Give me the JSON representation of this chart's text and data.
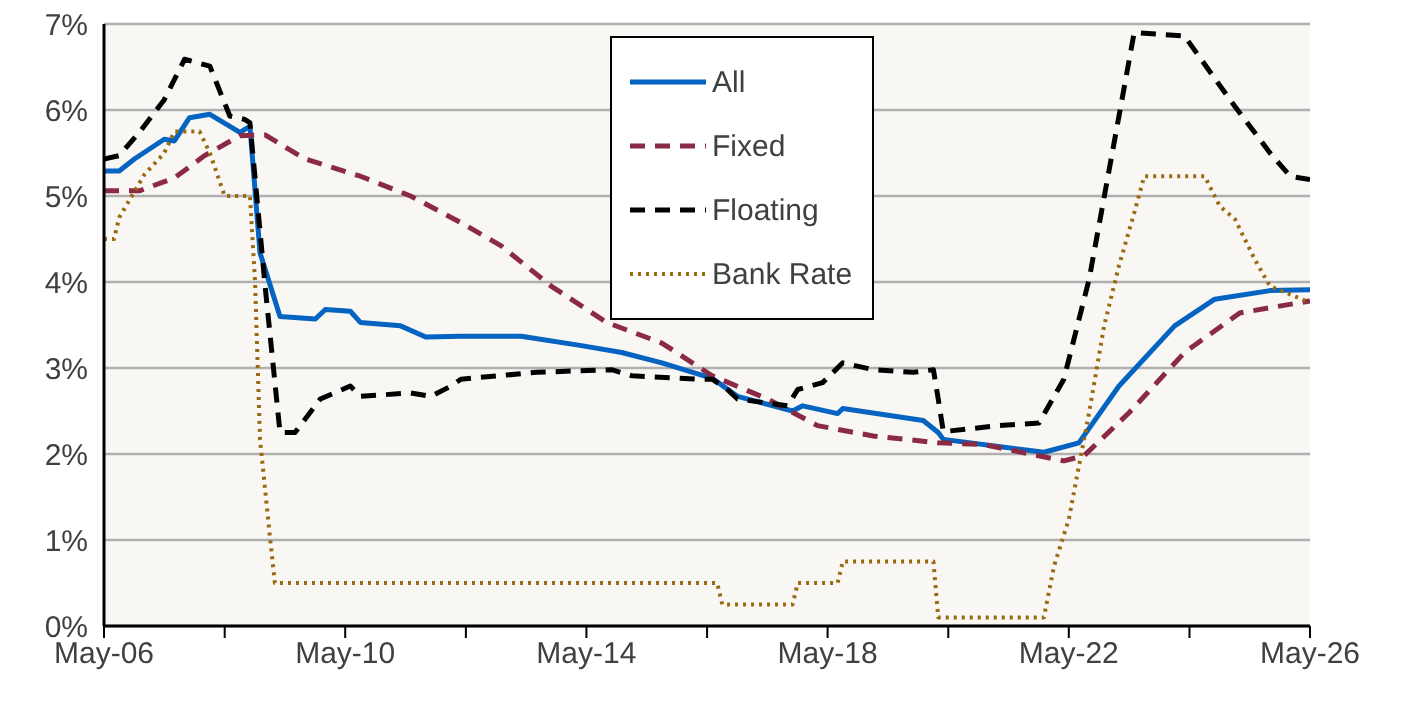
{
  "chart_data": {
    "type": "line",
    "xlim": [
      "2006-05",
      "2026-05"
    ],
    "ylim": [
      0,
      7
    ],
    "xticks": [
      {
        "value": "2006-05",
        "label": "May-06"
      },
      {
        "value": "2008-05",
        "label": null
      },
      {
        "value": "2010-05",
        "label": "May-10"
      },
      {
        "value": "2012-05",
        "label": null
      },
      {
        "value": "2014-05",
        "label": "May-14"
      },
      {
        "value": "2016-05",
        "label": null
      },
      {
        "value": "2018-05",
        "label": "May-18"
      },
      {
        "value": "2020-05",
        "label": null
      },
      {
        "value": "2022-05",
        "label": "May-22"
      },
      {
        "value": "2024-05",
        "label": null
      },
      {
        "value": "2026-05",
        "label": "May-26"
      }
    ],
    "yticks": [
      {
        "value": 0,
        "label": "0%"
      },
      {
        "value": 1,
        "label": "1%"
      },
      {
        "value": 2,
        "label": "2%"
      },
      {
        "value": 3,
        "label": "3%"
      },
      {
        "value": 4,
        "label": "4%"
      },
      {
        "value": 5,
        "label": "5%"
      },
      {
        "value": 6,
        "label": "6%"
      },
      {
        "value": 7,
        "label": "7%"
      }
    ],
    "grid": "y",
    "legend": "top",
    "series": [
      {
        "name": "All",
        "color": "#0563c1",
        "line_style": "solid",
        "x": [
          "2006-05",
          "2006-08",
          "2006-11",
          "2007-05",
          "2007-07",
          "2007-10",
          "2008-02",
          "2008-08",
          "2008-10",
          "2008-12",
          "2009-04",
          "2009-11",
          "2010-01",
          "2010-06",
          "2010-08",
          "2011-04",
          "2011-09",
          "2012-04",
          "2013-04",
          "2014-04",
          "2014-12",
          "2015-08",
          "2016-06",
          "2016-11",
          "2017-10",
          "2017-12",
          "2018-07",
          "2018-08",
          "2019-12",
          "2020-03",
          "2020-04",
          "2021-12",
          "2022-07",
          "2023-03",
          "2024-02",
          "2024-10",
          "2025-09",
          "2026-05"
        ],
        "values": [
          5.29,
          5.29,
          5.43,
          5.66,
          5.64,
          5.91,
          5.95,
          5.74,
          5.81,
          4.34,
          3.6,
          3.57,
          3.68,
          3.66,
          3.53,
          3.49,
          3.36,
          3.37,
          3.37,
          3.26,
          3.18,
          3.06,
          2.88,
          2.67,
          2.5,
          2.56,
          2.47,
          2.53,
          2.39,
          2.25,
          2.17,
          2.02,
          2.13,
          2.79,
          3.49,
          3.8,
          3.9,
          3.91
        ]
      },
      {
        "name": "Fixed",
        "color": "#8b2a44",
        "line_style": "dashed",
        "x": [
          "2006-05",
          "2006-12",
          "2007-07",
          "2008-01",
          "2008-08",
          "2009-01",
          "2009-09",
          "2010-08",
          "2011-06",
          "2012-04",
          "2012-12",
          "2013-10",
          "2014-09",
          "2015-08",
          "2016-06",
          "2017-05",
          "2018-03",
          "2019-02",
          "2020-03",
          "2020-12",
          "2022-04",
          "2022-08",
          "2023-05",
          "2024-04",
          "2025-03",
          "2026-05"
        ],
        "values": [
          5.06,
          5.06,
          5.21,
          5.47,
          5.7,
          5.71,
          5.43,
          5.23,
          5.0,
          4.69,
          4.42,
          3.95,
          3.53,
          3.29,
          2.91,
          2.64,
          2.33,
          2.21,
          2.13,
          2.11,
          1.92,
          1.98,
          2.48,
          3.18,
          3.64,
          3.78
        ]
      },
      {
        "name": "Floating",
        "color": "#000000",
        "line_style": "dashed",
        "x": [
          "2006-05",
          "2006-08",
          "2006-12",
          "2007-05",
          "2007-09",
          "2008-02",
          "2008-06",
          "2008-09",
          "2008-10",
          "2009-01",
          "2009-04",
          "2009-07",
          "2009-12",
          "2010-06",
          "2010-08",
          "2011-06",
          "2011-10",
          "2012-02",
          "2012-04",
          "2013-07",
          "2014-10",
          "2015-02",
          "2016-03",
          "2016-06",
          "2016-09",
          "2016-11",
          "2017-09",
          "2017-11",
          "2018-04",
          "2018-08",
          "2019-02",
          "2019-10",
          "2020-02",
          "2020-03",
          "2020-04",
          "2021-03",
          "2021-11",
          "2022-04",
          "2022-09",
          "2023-03",
          "2023-06",
          "2024-04",
          "2025-01",
          "2025-09",
          "2026-01",
          "2026-05"
        ],
        "values": [
          5.43,
          5.47,
          5.74,
          6.12,
          6.59,
          6.51,
          5.93,
          5.89,
          5.85,
          3.95,
          2.25,
          2.25,
          2.64,
          2.79,
          2.67,
          2.71,
          2.67,
          2.79,
          2.87,
          2.95,
          2.98,
          2.91,
          2.87,
          2.87,
          2.75,
          2.64,
          2.56,
          2.75,
          2.83,
          3.06,
          2.98,
          2.95,
          2.98,
          2.64,
          2.26,
          2.33,
          2.36,
          2.87,
          4.03,
          5.93,
          6.9,
          6.86,
          6.12,
          5.5,
          5.23,
          5.19
        ]
      },
      {
        "name": "Bank Rate",
        "color": "#9b6a10",
        "line_style": "dotted",
        "x": [
          "2006-05",
          "2006-07",
          "2006-08",
          "2007-01",
          "2007-05",
          "2007-07",
          "2007-12",
          "2008-02",
          "2008-05",
          "2008-10",
          "2008-11",
          "2008-12",
          "2009-02",
          "2009-03",
          "2016-07",
          "2016-08",
          "2017-10",
          "2017-11",
          "2018-07",
          "2018-08",
          "2020-02",
          "2020-03",
          "2021-12",
          "2022-02",
          "2022-05",
          "2022-09",
          "2022-12",
          "2023-03",
          "2023-06",
          "2023-08",
          "2024-08",
          "2024-11",
          "2025-02",
          "2025-06",
          "2025-09",
          "2025-12",
          "2026-05"
        ],
        "values": [
          4.5,
          4.5,
          4.75,
          5.25,
          5.5,
          5.75,
          5.75,
          5.5,
          5.0,
          5.0,
          4.0,
          2.17,
          1.0,
          0.5,
          0.5,
          0.25,
          0.25,
          0.5,
          0.5,
          0.75,
          0.75,
          0.1,
          0.1,
          0.7,
          1.24,
          2.48,
          3.49,
          4.19,
          4.8,
          5.23,
          5.23,
          4.88,
          4.73,
          4.26,
          3.95,
          3.88,
          3.76
        ]
      }
    ]
  }
}
